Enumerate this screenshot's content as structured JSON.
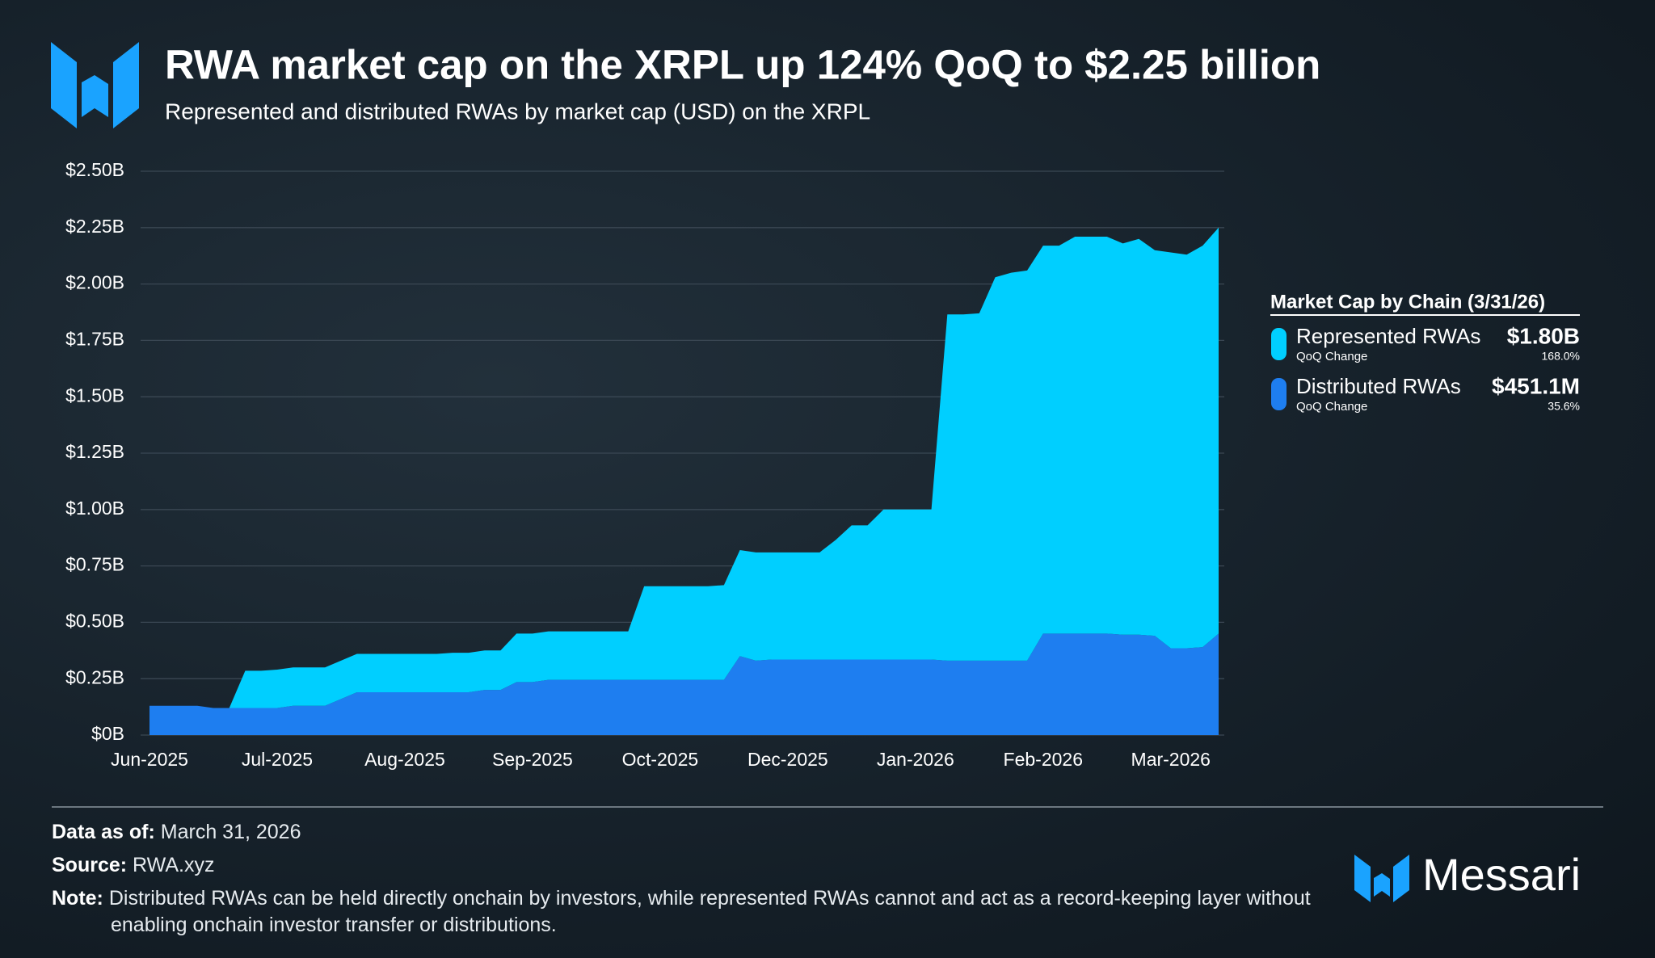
{
  "chart_data": {
    "type": "stacked-area",
    "title": "RWA market cap on the XRPL up 124% QoQ to $2.25 billion",
    "subtitle": "Represented and distributed RWAs by market cap (USD) on the XRPL",
    "categories": [
      "Jun-2025",
      null,
      null,
      null,
      null,
      null,
      null,
      null,
      "Jul-2025",
      null,
      null,
      null,
      null,
      null,
      null,
      null,
      "Aug-2025",
      null,
      null,
      null,
      null,
      null,
      null,
      null,
      "Sep-2025",
      null,
      null,
      null,
      null,
      null,
      null,
      null,
      "Oct-2025",
      null,
      null,
      null,
      null,
      null,
      null,
      null,
      "Dec-2025",
      null,
      null,
      null,
      null,
      null,
      null,
      null,
      "Jan-2026",
      null,
      null,
      null,
      null,
      null,
      null,
      null,
      "Feb-2026",
      null,
      null,
      null,
      null,
      null,
      null,
      null,
      "Mar-2026",
      null,
      null,
      null
    ],
    "series": [
      {
        "name": "Represented RWAs",
        "color": "#00cfff",
        "values": [
          0,
          0,
          0,
          0,
          0,
          0,
          0.165,
          0.165,
          0.17,
          0.17,
          0.17,
          0.17,
          0.17,
          0.17,
          0.17,
          0.17,
          0.17,
          0.17,
          0.17,
          0.175,
          0.175,
          0.175,
          0.175,
          0.215,
          0.215,
          0.215,
          0.215,
          0.215,
          0.215,
          0.215,
          0.215,
          0.415,
          0.415,
          0.415,
          0.415,
          0.415,
          0.42,
          0.47,
          0.48,
          0.475,
          0.475,
          0.475,
          0.475,
          0.53,
          0.595,
          0.595,
          0.665,
          0.665,
          0.665,
          0.665,
          1.535,
          1.535,
          1.54,
          1.7,
          1.72,
          1.73,
          1.72,
          1.72,
          1.76,
          1.76,
          1.76,
          1.735,
          1.755,
          1.71,
          1.755,
          1.745,
          1.78,
          1.8
        ]
      },
      {
        "name": "Distributed RWAs",
        "color": "#1e7ef0",
        "values": [
          0.13,
          0.13,
          0.13,
          0.13,
          0.12,
          0.12,
          0.12,
          0.12,
          0.12,
          0.13,
          0.13,
          0.13,
          0.16,
          0.19,
          0.19,
          0.19,
          0.19,
          0.19,
          0.19,
          0.19,
          0.19,
          0.2,
          0.2,
          0.235,
          0.235,
          0.245,
          0.245,
          0.245,
          0.245,
          0.245,
          0.245,
          0.245,
          0.245,
          0.245,
          0.245,
          0.245,
          0.245,
          0.35,
          0.33,
          0.335,
          0.335,
          0.335,
          0.335,
          0.335,
          0.335,
          0.335,
          0.335,
          0.335,
          0.335,
          0.335,
          0.33,
          0.33,
          0.33,
          0.33,
          0.33,
          0.33,
          0.45,
          0.45,
          0.45,
          0.45,
          0.45,
          0.445,
          0.445,
          0.44,
          0.385,
          0.385,
          0.39,
          0.45
        ]
      }
    ],
    "ylim": [
      0,
      2.5
    ],
    "yticks": [
      {
        "value": 0,
        "label": "$0B"
      },
      {
        "value": 0.25,
        "label": "$0.25B"
      },
      {
        "value": 0.5,
        "label": "$0.50B"
      },
      {
        "value": 0.75,
        "label": "$0.75B"
      },
      {
        "value": 1,
        "label": "$1.00B"
      },
      {
        "value": 1.25,
        "label": "$1.25B"
      },
      {
        "value": 1.5,
        "label": "$1.50B"
      },
      {
        "value": 1.75,
        "label": "$1.75B"
      },
      {
        "value": 2,
        "label": "$2.00B"
      },
      {
        "value": 2.25,
        "label": "$2.25B"
      },
      {
        "value": 2.5,
        "label": "$2.50B"
      }
    ],
    "grid": true,
    "legend": {
      "title": "Market Cap by Chain (3/31/26)",
      "position": "right",
      "items": [
        {
          "value": "$1.80B",
          "change_label": "QoQ Change",
          "change": "168.0%"
        },
        {
          "value": "$451.1M",
          "change_label": "QoQ Change",
          "change": "35.6%"
        }
      ]
    }
  },
  "footer": {
    "data_as_of_label": "Data as of:",
    "data_as_of": "March 31, 2026",
    "source_label": "Source:",
    "source": "RWA.xyz",
    "note_label": "Note:",
    "note": "Distributed RWAs can be held directly onchain by investors, while represented RWAs cannot and act as a record-keeping layer without enabling onchain investor transfer or distributions.",
    "brand": "Messari"
  }
}
